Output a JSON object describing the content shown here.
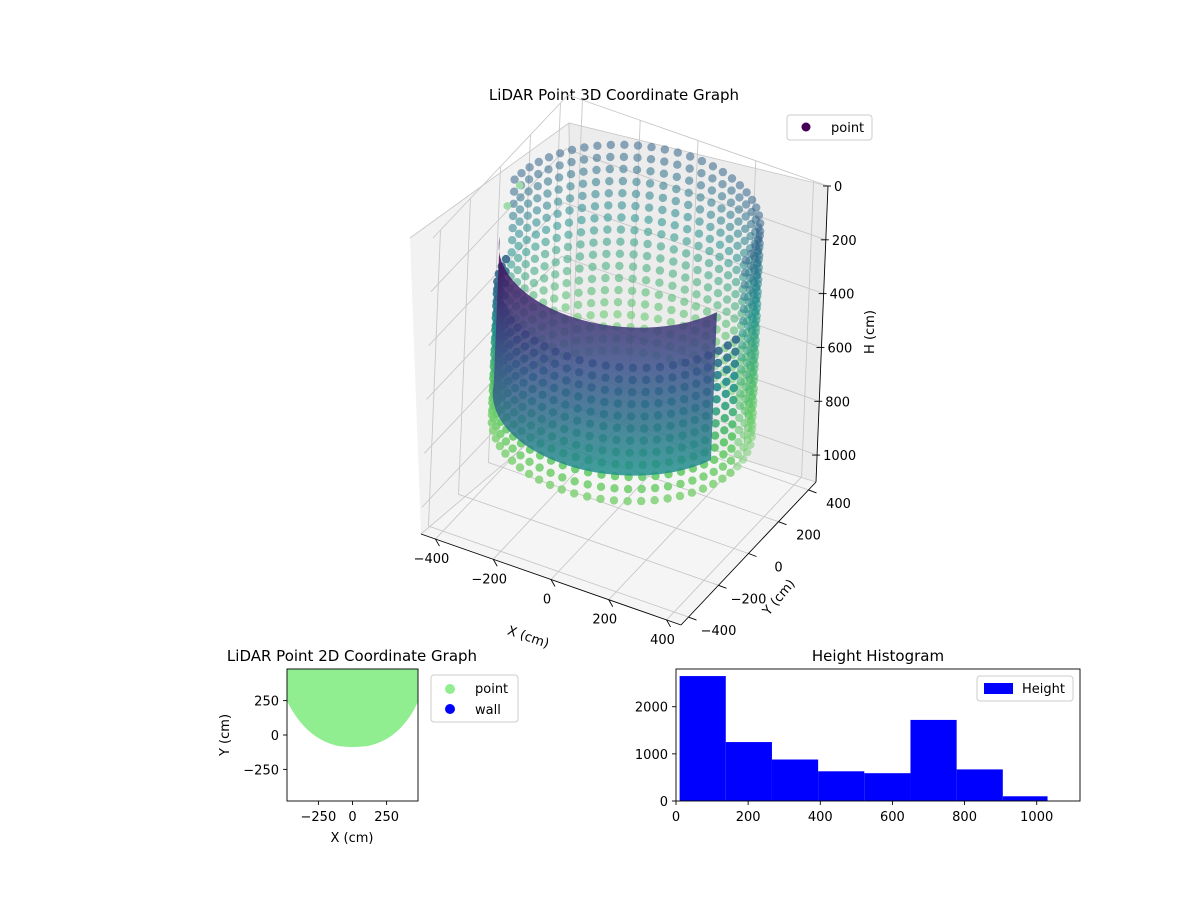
{
  "chart_data": [
    {
      "id": "lidar-3d",
      "type": "scatter",
      "title": "LiDAR Point 3D Coordinate Graph",
      "xlabel": "X (cm)",
      "ylabel": "Y (cm)",
      "zlabel": "H (cm)",
      "x_ticks": [
        "−400",
        "−200",
        "0",
        "200",
        "400"
      ],
      "y_ticks": [
        "−400",
        "−200",
        "0",
        "200",
        "400"
      ],
      "z_ticks": [
        "0",
        "200",
        "400",
        "600",
        "800",
        "1000"
      ],
      "xlim": [
        -450,
        450
      ],
      "ylim": [
        -450,
        450
      ],
      "zlim": [
        0,
        1100
      ],
      "z_inverted": true,
      "grid": true,
      "colormap": "viridis",
      "legend": {
        "placement": "top-right",
        "entries": [
          {
            "label": "point",
            "color": "#440154"
          }
        ]
      },
      "shape": "cylindrical wall of points, radius ~400 cm, height 0–~800 cm, denser at low heights"
    },
    {
      "id": "lidar-2d",
      "type": "scatter",
      "title": "LiDAR Point 2D Coordinate Graph",
      "xlabel": "X (cm)",
      "ylabel": "Y (cm)",
      "x_ticks": [
        "−250",
        "0",
        "250"
      ],
      "y_ticks": [
        "250",
        "0",
        "−250"
      ],
      "xlim": [
        -480,
        480
      ],
      "ylim": [
        -480,
        480
      ],
      "series": [
        {
          "name": "point",
          "color": "#90ee90"
        },
        {
          "name": "wall",
          "color": "#0000ff"
        }
      ],
      "legend": {
        "placement": "outside-right"
      }
    },
    {
      "id": "height-hist",
      "type": "bar",
      "title": "Height Histogram",
      "x_ticks": [
        "0",
        "200",
        "400",
        "600",
        "800",
        "1000"
      ],
      "y_ticks": [
        "0",
        "1000",
        "2000"
      ],
      "xlim": [
        0,
        1120
      ],
      "ylim": [
        0,
        2800
      ],
      "bin_edges": [
        10,
        138,
        266,
        394,
        522,
        650,
        778,
        906,
        1030
      ],
      "values": [
        2650,
        1250,
        880,
        630,
        590,
        1720,
        670,
        100
      ],
      "series": [
        {
          "name": "Height",
          "color": "#0000ff"
        }
      ],
      "legend": {
        "placement": "top-right"
      }
    }
  ]
}
